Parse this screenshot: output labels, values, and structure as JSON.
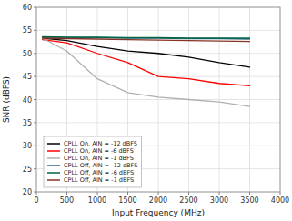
{
  "chart_data": {
    "type": "line",
    "xlabel": "Input Frequency (MHz)",
    "ylabel": "SNR (dBFS)",
    "xlim": [
      0,
      4000
    ],
    "ylim": [
      20,
      60
    ],
    "xticks": [
      0,
      500,
      1000,
      1500,
      2000,
      2500,
      3000,
      3500,
      4000
    ],
    "yticks": [
      20,
      25,
      30,
      35,
      40,
      45,
      50,
      55,
      60
    ],
    "grid": true,
    "legend": "lower left",
    "series": [
      {
        "name": "CPLL On, AIN = -12 dBFS",
        "color": "#000000",
        "x": [
          100,
          500,
          1000,
          1500,
          2000,
          2500,
          3000,
          3500
        ],
        "values": [
          53.3,
          52.8,
          51.5,
          50.5,
          50.0,
          49.2,
          48.0,
          47.0
        ]
      },
      {
        "name": "CPLL On, AIN = -6 dBFS",
        "color": "#ff0000",
        "x": [
          100,
          500,
          1000,
          1500,
          2000,
          2500,
          3000,
          3500
        ],
        "values": [
          53.0,
          52.3,
          50.0,
          48.0,
          45.0,
          44.5,
          43.5,
          43.0
        ]
      },
      {
        "name": "CPLL On, AIN = -1 dBFS",
        "color": "#b0b0b0",
        "x": [
          100,
          500,
          750,
          1000,
          1500,
          2000,
          2500,
          3000,
          3500
        ],
        "values": [
          53.3,
          50.5,
          47.5,
          44.5,
          41.5,
          40.5,
          40.0,
          39.5,
          38.5
        ]
      },
      {
        "name": "CPLL Off, AIN = -12 dBFS",
        "color": "#336688",
        "x": [
          100,
          500,
          1000,
          1500,
          2000,
          2500,
          3000,
          3500
        ],
        "values": [
          53.5,
          53.4,
          53.4,
          53.3,
          53.3,
          53.2,
          53.2,
          53.1
        ]
      },
      {
        "name": "CPLL Off, AIN = -6 dBFS",
        "color": "#006644",
        "x": [
          100,
          500,
          1000,
          1500,
          2000,
          2500,
          3000,
          3500
        ],
        "values": [
          53.6,
          53.5,
          53.5,
          53.4,
          53.4,
          53.3,
          53.3,
          53.3
        ]
      },
      {
        "name": "CPLL Off, AIN = -1 dBFS",
        "color": "#883322",
        "x": [
          100,
          500,
          1000,
          1500,
          2000,
          2500,
          3000,
          3500
        ],
        "values": [
          53.3,
          53.2,
          53.1,
          53.0,
          52.9,
          52.8,
          52.7,
          52.6
        ]
      }
    ]
  }
}
